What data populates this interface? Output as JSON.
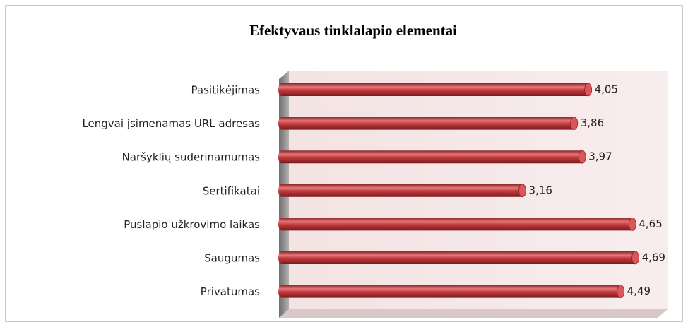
{
  "chart_data": {
    "type": "bar",
    "orientation": "horizontal",
    "title": "Efektyvaus tinklalapio elementai",
    "categories": [
      "Pasitikėjimas",
      "Lengvai įsimenamas URL adresas",
      "Naršyklių suderinamumas",
      "Sertifikatai",
      "Puslapio užkrovimo laikas",
      "Saugumas",
      "Privatumas"
    ],
    "values": [
      4.05,
      3.86,
      3.97,
      3.16,
      4.65,
      4.69,
      4.49
    ],
    "value_labels": [
      "4,05",
      "3,86",
      "3,97",
      "3,16",
      "4,65",
      "4,69",
      "4,49"
    ],
    "color": "#c0393c",
    "xlim": [
      0,
      5
    ]
  }
}
